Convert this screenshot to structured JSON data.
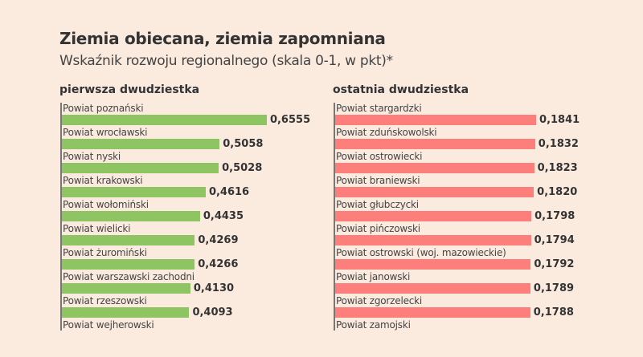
{
  "chart_data": [
    {
      "type": "bar",
      "orientation": "horizontal",
      "title": "pierwsza dwudziestka",
      "color": "#8fc462",
      "categories": [
        "Powiat poznański",
        "Powiat wrocławski",
        "Powiat nyski",
        "Powiat krakowski",
        "Powiat wołomiński",
        "Powiat wielicki",
        "Powiat żuromiński",
        "Powiat warszawski zachodni",
        "Powiat rzeszowski",
        "Powiat wejherowski"
      ],
      "values": [
        0.6555,
        0.5058,
        0.5028,
        0.4616,
        0.4435,
        0.4269,
        0.4266,
        0.413,
        0.4093,
        null
      ],
      "labels": [
        "0,6555",
        "0,5058",
        "0,5028",
        "0,4616",
        "0,4435",
        "0,4269",
        "0,4266",
        "0,4130",
        "0,4093",
        ""
      ]
    },
    {
      "type": "bar",
      "orientation": "horizontal",
      "title": "ostatnia dwudziestka",
      "color": "#fc7f7b",
      "categories": [
        "Powiat stargardzki",
        "Powiat zduńskowolski",
        "Powiat ostrowiecki",
        "Powiat braniewski",
        "Powiat głubczycki",
        "Powiat pińczowski",
        "Powiat ostrowski (woj. mazowieckie)",
        "Powiat janowski",
        "Powiat zgorzelecki",
        "Powiat zamojski"
      ],
      "values": [
        0.1841,
        0.1832,
        0.1823,
        0.182,
        0.1798,
        0.1794,
        0.1792,
        0.1789,
        0.1788,
        null
      ],
      "labels": [
        "0,1841",
        "0,1832",
        "0,1823",
        "0,1820",
        "0,1798",
        "0,1794",
        "0,1792",
        "0,1789",
        "0,1788",
        ""
      ]
    }
  ],
  "header": {
    "title": "Ziemia obiecana, ziemia zapomniana",
    "subtitle": "Wskaźnik rozwoju regionalnego (skala 0-1, w pkt)*"
  }
}
